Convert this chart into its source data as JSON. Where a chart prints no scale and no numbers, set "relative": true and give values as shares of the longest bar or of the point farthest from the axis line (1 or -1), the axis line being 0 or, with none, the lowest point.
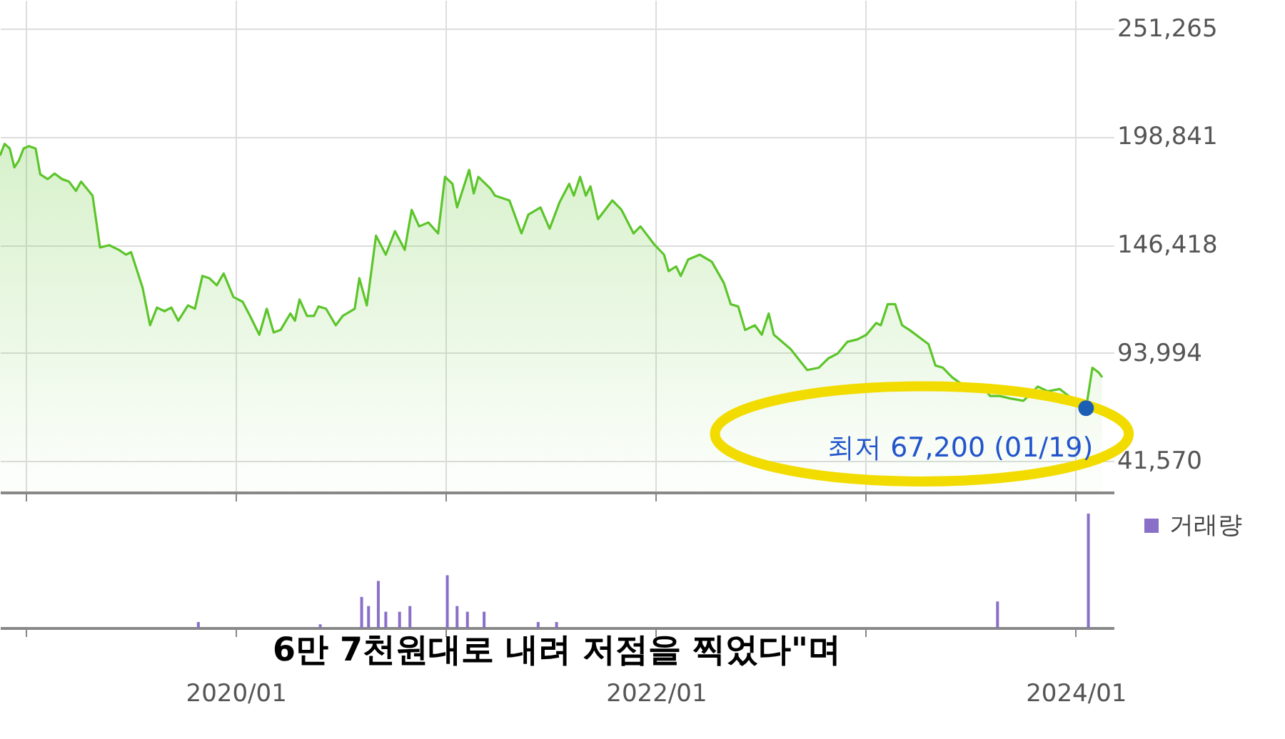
{
  "chart_data": [
    {
      "type": "area",
      "tick_labels": "y",
      "grid": true,
      "xlim": [
        "2018-11-17",
        "2024-03-07"
      ],
      "xticks": [
        {
          "value": "2019-01-01",
          "label": null
        },
        {
          "value": "2020-01-01",
          "label": null
        },
        {
          "value": "2021-01-01",
          "label": null
        },
        {
          "value": "2022-01-01",
          "label": null
        },
        {
          "value": "2023-01-01",
          "label": null
        },
        {
          "value": "2024-01-01",
          "label": null
        }
      ],
      "ylim": [
        26500,
        265000
      ],
      "yticks": [
        {
          "value": 41570,
          "label": "41,570"
        },
        {
          "value": 93994,
          "label": "93,994"
        },
        {
          "value": 146418,
          "label": "146,418"
        },
        {
          "value": 198841,
          "label": "198,841"
        },
        {
          "value": 251265,
          "label": "251,265"
        }
      ],
      "x": [
        "2018-11-17",
        "2018-11-25",
        "2018-12-04",
        "2018-12-12",
        "2018-12-20",
        "2018-12-28",
        "2019-01-06",
        "2019-01-18",
        "2019-01-26",
        "2019-02-08",
        "2019-02-20",
        "2019-03-05",
        "2019-03-17",
        "2019-03-29",
        "2019-04-07",
        "2019-04-27",
        "2019-05-10",
        "2019-05-26",
        "2019-06-12",
        "2019-06-24",
        "2019-07-03",
        "2019-07-23",
        "2019-08-05",
        "2019-08-17",
        "2019-08-30",
        "2019-09-11",
        "2019-09-23",
        "2019-10-10",
        "2019-10-22",
        "2019-11-04",
        "2019-11-16",
        "2019-11-29",
        "2019-12-11",
        "2019-12-28",
        "2020-01-13",
        "2020-01-26",
        "2020-02-11",
        "2020-02-24",
        "2020-03-07",
        "2020-03-19",
        "2020-04-05",
        "2020-04-13",
        "2020-04-21",
        "2020-05-04",
        "2020-05-16",
        "2020-05-24",
        "2020-06-06",
        "2020-06-23",
        "2020-07-05",
        "2020-07-26",
        "2020-08-03",
        "2020-08-16",
        "2020-09-01",
        "2020-09-18",
        "2020-10-04",
        "2020-10-21",
        "2020-11-02",
        "2020-11-15",
        "2020-12-01",
        "2020-12-18",
        "2020-12-30",
        "2021-01-12",
        "2021-01-20",
        "2021-02-10",
        "2021-02-18",
        "2021-02-26",
        "2021-03-19",
        "2021-03-27",
        "2021-04-21",
        "2021-05-12",
        "2021-05-24",
        "2021-06-14",
        "2021-06-30",
        "2021-07-17",
        "2021-08-03",
        "2021-08-11",
        "2021-08-22",
        "2021-09-01",
        "2021-09-09",
        "2021-09-22",
        "2021-10-17",
        "2021-11-02",
        "2021-11-23",
        "2021-12-05",
        "2021-12-30",
        "2022-01-15",
        "2022-01-23",
        "2022-02-05",
        "2022-02-13",
        "2022-02-26",
        "2022-03-18",
        "2022-04-08",
        "2022-04-29",
        "2022-05-11",
        "2022-05-24",
        "2022-06-05",
        "2022-06-22",
        "2022-07-04",
        "2022-07-16",
        "2022-07-25",
        "2022-08-23",
        "2022-09-21",
        "2022-10-11",
        "2022-10-28",
        "2022-11-13",
        "2022-11-30",
        "2022-12-17",
        "2023-01-02",
        "2023-01-19",
        "2023-01-27",
        "2023-02-08",
        "2023-02-21",
        "2023-03-05",
        "2023-03-18",
        "2023-04-20",
        "2023-05-02",
        "2023-05-15",
        "2023-05-31",
        "2023-06-17",
        "2023-06-29",
        "2023-07-12",
        "2023-07-24",
        "2023-08-05",
        "2023-08-22",
        "2023-09-08",
        "2023-10-02",
        "2023-10-27",
        "2023-11-13",
        "2023-12-04",
        "2023-12-20",
        "2024-01-19",
        "2024-01-30",
        "2024-02-10",
        "2024-02-16"
      ],
      "series": [
        {
          "color": "#5cc52a",
          "values": [
            189600,
            195300,
            193000,
            183900,
            187300,
            193000,
            194200,
            193000,
            180500,
            178200,
            180900,
            178200,
            177000,
            172500,
            177000,
            170200,
            145100,
            146200,
            143900,
            141600,
            142800,
            125600,
            107400,
            116000,
            114200,
            116000,
            109600,
            117000,
            115400,
            131300,
            130200,
            126800,
            132500,
            121100,
            118800,
            111900,
            102800,
            115400,
            103900,
            105100,
            113100,
            109600,
            119900,
            111900,
            111900,
            116500,
            115400,
            107400,
            111900,
            115400,
            130200,
            117000,
            150800,
            141600,
            153000,
            143900,
            163300,
            155300,
            157200,
            151900,
            179300,
            175900,
            164500,
            182700,
            171300,
            179300,
            173600,
            170200,
            167900,
            151900,
            161000,
            164500,
            154200,
            166800,
            175900,
            170200,
            179300,
            170200,
            174700,
            158800,
            167900,
            163300,
            151900,
            155300,
            146200,
            141600,
            133600,
            135900,
            131300,
            139300,
            141600,
            138200,
            127900,
            117600,
            116500,
            105100,
            107400,
            102800,
            113100,
            102800,
            95900,
            85700,
            86800,
            91400,
            93700,
            99400,
            100500,
            102800,
            108500,
            107400,
            117600,
            117600,
            107400,
            105100,
            98200,
            87900,
            86800,
            82200,
            78800,
            76500,
            78800,
            77700,
            73100,
            73100,
            72000,
            70800,
            77700,
            75400,
            76500,
            73100,
            67200,
            86800,
            84500,
            82200
          ]
        }
      ],
      "annotations": [
        {
          "text": "최저 67,200 (01/19)",
          "x": "2024-01-19",
          "y": 67200
        }
      ]
    },
    {
      "type": "bar",
      "relative": true,
      "tick_labels": "x",
      "legend": "top right",
      "xlim": [
        "2018-11-17",
        "2024-03-07"
      ],
      "xticks": [
        {
          "value": "2019-01-01",
          "label": null
        },
        {
          "value": "2020-01-01",
          "label": "2020/01"
        },
        {
          "value": "2021-01-01",
          "label": null
        },
        {
          "value": "2022-01-01",
          "label": "2022/01"
        },
        {
          "value": "2023-01-01",
          "label": null
        },
        {
          "value": "2024-01-01",
          "label": "2024/01"
        }
      ],
      "x": [
        "2019-10-28",
        "2020-05-27",
        "2020-08-07",
        "2020-08-19",
        "2020-09-05",
        "2020-09-18",
        "2020-10-12",
        "2020-10-30",
        "2021-01-03",
        "2021-01-20",
        "2021-02-07",
        "2021-03-08",
        "2021-06-10",
        "2021-07-12",
        "2023-08-18",
        "2024-01-23"
      ],
      "series": [
        {
          "name": "거래량",
          "color": "#8a6fc8",
          "values": [
            0.05,
            0.03,
            0.27,
            0.19,
            0.41,
            0.14,
            0.14,
            0.19,
            0.46,
            0.19,
            0.14,
            0.14,
            0.05,
            0.05,
            0.23,
            1.0
          ]
        }
      ],
      "annotations": [
        "6만 7천원대로 내려 저점을 찍었다\"며"
      ]
    }
  ]
}
